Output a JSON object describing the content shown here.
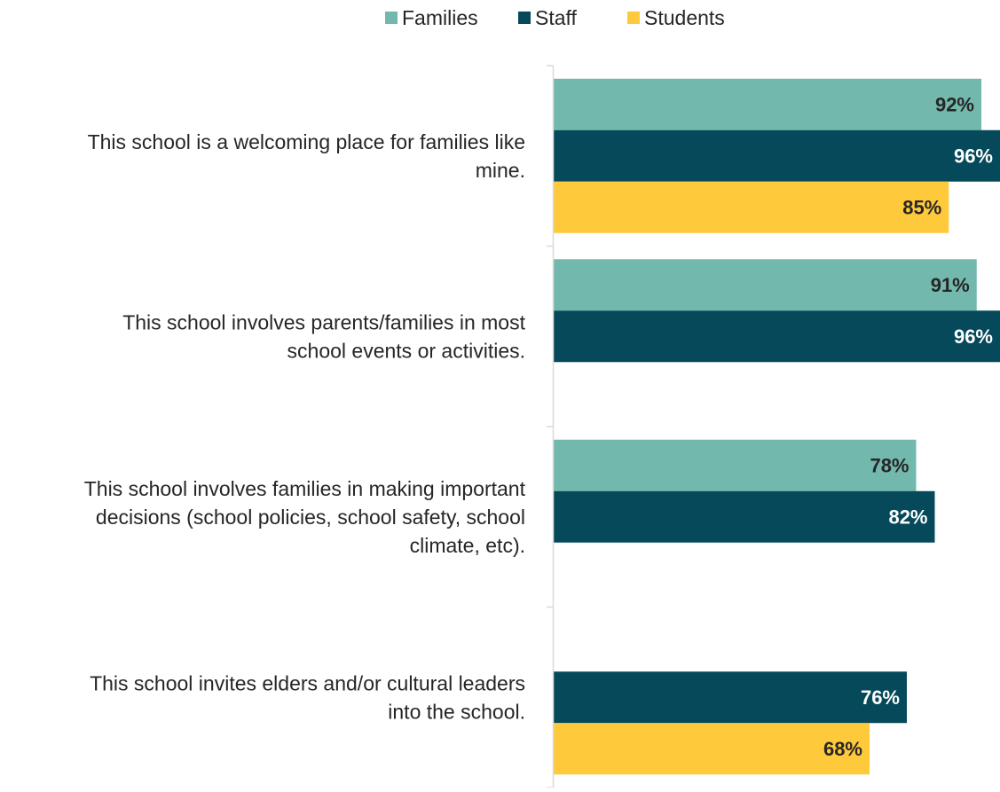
{
  "chart_data": {
    "type": "bar",
    "orientation": "horizontal",
    "categories": [
      "This school is a welcoming place for families like mine.",
      "This school involves parents/families in most school events or activities.",
      "This school involves families in making important decisions  (school policies, school safety, school climate, etc).",
      "This school invites elders and/or cultural leaders into the school."
    ],
    "category_lines": [
      [
        "This school is a welcoming place for families like",
        "mine."
      ],
      [
        "This school involves parents/families in most",
        "school events or activities."
      ],
      [
        "This school involves families in making important",
        "decisions  (school policies, school safety, school",
        "climate, etc)."
      ],
      [
        "This school invites elders and/or cultural leaders",
        "into the school."
      ]
    ],
    "series": [
      {
        "name": "Families",
        "color": "#72b8ad",
        "label_color": "#262626",
        "values": [
          92,
          91,
          78,
          null
        ]
      },
      {
        "name": "Staff",
        "color": "#05495a",
        "label_color": "#ffffff",
        "values": [
          96,
          96,
          82,
          76
        ]
      },
      {
        "name": "Students",
        "color": "#ffc93c",
        "label_color": "#262626",
        "values": [
          85,
          null,
          null,
          68
        ]
      }
    ],
    "value_suffix": "%",
    "xlim": [
      0,
      96
    ],
    "grid": false,
    "legend_position": "top"
  }
}
